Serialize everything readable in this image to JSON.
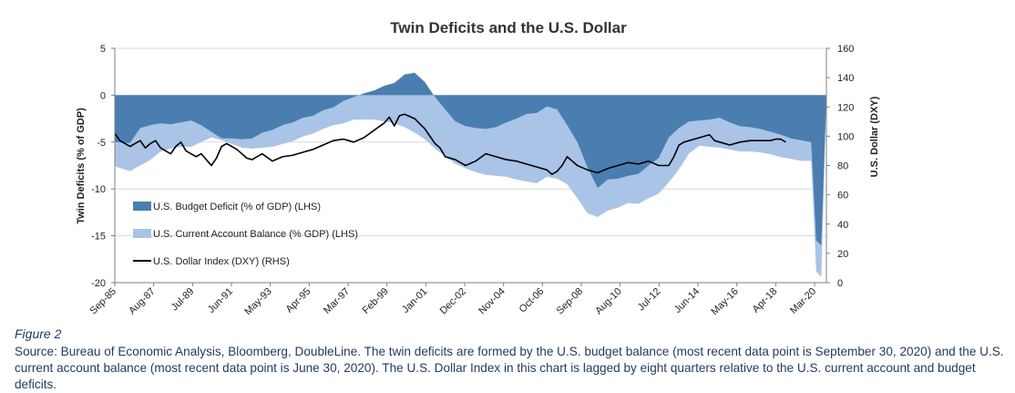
{
  "caption": {
    "figure_label": "Figure 2",
    "source": "Source: Bureau of Economic Analysis, Bloomberg, DoubleLine. The twin deficits are formed by the U.S. budget balance (most recent data point is September 30, 2020) and the U.S. current account balance (most recent data point is June 30, 2020). The U.S. Dollar Index in this chart is lagged by eight quarters relative to the U.S. current account and budget deficits."
  },
  "chart_data": {
    "type": "area",
    "title": "Twin Deficits and the U.S. Dollar",
    "ylabel_left": "Twin Deficits (% of GDP)",
    "ylabel_right": "U.S. Dollar (DXY)",
    "ylim_left": [
      -20,
      5
    ],
    "ylim_right": [
      0,
      160
    ],
    "yticks_left": [
      "5",
      "0",
      "-5",
      "-10",
      "-15",
      "-20"
    ],
    "yticks_right": [
      "160",
      "140",
      "120",
      "100",
      "80",
      "60",
      "40",
      "20",
      "0"
    ],
    "xticks": [
      "Sep-85",
      "Aug-87",
      "Jul-89",
      "Jun-91",
      "May-93",
      "Apr-95",
      "Mar-97",
      "Feb-99",
      "Jan-01",
      "Dec-02",
      "Nov-04",
      "Oct-06",
      "Sep-08",
      "Aug-10",
      "Jul-12",
      "Jun-14",
      "May-16",
      "Apr-18",
      "Mar-20"
    ],
    "x_range": [
      1985.75,
      2020.75
    ],
    "grid": true,
    "legend_position": "bottom-left",
    "series": [
      {
        "name": "U.S. Budget Deficit (% of GDP) (LHS)",
        "kind": "area",
        "axis": "left",
        "color": "#4a7eb0",
        "x": [
          1985.75,
          1986.5,
          1987.0,
          1987.5,
          1988.0,
          1988.5,
          1989.0,
          1989.5,
          1990.0,
          1990.5,
          1991.0,
          1991.5,
          1992.0,
          1992.5,
          1993.0,
          1993.5,
          1994.0,
          1994.5,
          1995.0,
          1995.5,
          1996.0,
          1996.5,
          1997.0,
          1997.5,
          1998.0,
          1998.5,
          1999.0,
          1999.5,
          2000.0,
          2000.5,
          2001.0,
          2001.5,
          2002.0,
          2002.5,
          2003.0,
          2003.5,
          2004.0,
          2004.5,
          2005.0,
          2005.5,
          2006.0,
          2006.5,
          2007.0,
          2007.5,
          2008.0,
          2008.5,
          2009.0,
          2009.5,
          2010.0,
          2010.5,
          2011.0,
          2011.5,
          2012.0,
          2012.5,
          2013.0,
          2013.5,
          2014.0,
          2014.5,
          2015.0,
          2015.5,
          2016.0,
          2016.5,
          2017.0,
          2017.5,
          2018.0,
          2018.5,
          2019.0,
          2019.5,
          2020.0,
          2020.25,
          2020.5,
          2020.75
        ],
        "values": [
          -5.0,
          -5.1,
          -3.5,
          -3.2,
          -3.0,
          -3.1,
          -2.9,
          -2.7,
          -3.2,
          -3.9,
          -4.6,
          -4.6,
          -4.7,
          -4.6,
          -4.0,
          -3.7,
          -3.2,
          -2.9,
          -2.4,
          -2.2,
          -1.6,
          -1.3,
          -0.6,
          -0.2,
          0.2,
          0.5,
          1.0,
          1.3,
          2.2,
          2.4,
          1.4,
          -0.2,
          -1.5,
          -2.8,
          -3.3,
          -3.5,
          -3.6,
          -3.4,
          -2.9,
          -2.5,
          -2.0,
          -1.9,
          -1.2,
          -1.5,
          -3.2,
          -5.0,
          -7.7,
          -9.9,
          -9.0,
          -8.9,
          -8.6,
          -8.4,
          -7.5,
          -6.7,
          -4.5,
          -3.5,
          -2.8,
          -2.7,
          -2.6,
          -2.4,
          -2.9,
          -3.3,
          -3.4,
          -3.6,
          -3.9,
          -4.2,
          -4.6,
          -4.8,
          -5.0,
          -15.5,
          -16.0,
          0
        ]
      },
      {
        "name": "U.S. Current Account Balance (% GDP) (LHS)",
        "kind": "area",
        "axis": "left",
        "color": "#a9c4e6",
        "x": [
          1985.75,
          1986.5,
          1987.0,
          1987.5,
          1988.0,
          1988.5,
          1989.0,
          1989.5,
          1990.0,
          1990.5,
          1991.0,
          1991.5,
          1992.0,
          1992.5,
          1993.0,
          1993.5,
          1994.0,
          1994.5,
          1995.0,
          1995.5,
          1996.0,
          1996.5,
          1997.0,
          1997.5,
          1998.0,
          1998.5,
          1999.0,
          1999.5,
          2000.0,
          2000.5,
          2001.0,
          2001.5,
          2002.0,
          2002.5,
          2003.0,
          2003.5,
          2004.0,
          2004.5,
          2005.0,
          2005.5,
          2006.0,
          2006.5,
          2007.0,
          2007.5,
          2008.0,
          2008.5,
          2009.0,
          2009.5,
          2010.0,
          2010.5,
          2011.0,
          2011.5,
          2012.0,
          2012.5,
          2013.0,
          2013.5,
          2014.0,
          2014.5,
          2015.0,
          2015.5,
          2016.0,
          2016.5,
          2017.0,
          2017.5,
          2018.0,
          2018.5,
          2019.0,
          2019.5,
          2020.0,
          2020.25,
          2020.5,
          2020.75
        ],
        "values": [
          -7.6,
          -8.1,
          -7.5,
          -6.9,
          -6.0,
          -5.7,
          -5.5,
          -5.5,
          -5.0,
          -4.5,
          -4.8,
          -5.2,
          -5.6,
          -5.7,
          -5.6,
          -5.5,
          -5.2,
          -4.9,
          -4.4,
          -4.1,
          -3.6,
          -3.2,
          -3.0,
          -2.6,
          -2.6,
          -2.6,
          -2.8,
          -3.0,
          -3.4,
          -4.0,
          -4.7,
          -5.7,
          -6.5,
          -7.3,
          -7.8,
          -8.2,
          -8.5,
          -8.6,
          -8.7,
          -9.0,
          -9.2,
          -9.4,
          -8.7,
          -8.9,
          -9.5,
          -11.0,
          -12.6,
          -13.0,
          -12.3,
          -12.0,
          -11.5,
          -11.6,
          -11.0,
          -10.5,
          -9.3,
          -7.9,
          -6.2,
          -5.4,
          -5.5,
          -5.6,
          -5.8,
          -6.0,
          -6.0,
          -6.1,
          -6.3,
          -6.6,
          -6.8,
          -7.0,
          -7.0,
          -18.8,
          -19.4,
          0
        ]
      },
      {
        "name": "U.S. Dollar Index (DXY) (RHS)",
        "kind": "line",
        "axis": "right",
        "color": "#000000",
        "x": [
          1985.75,
          1986.0,
          1986.5,
          1987.0,
          1987.25,
          1987.5,
          1987.75,
          1988.0,
          1988.25,
          1988.5,
          1988.75,
          1989.0,
          1989.25,
          1989.5,
          1989.75,
          1990.0,
          1990.25,
          1990.5,
          1990.75,
          1991.0,
          1991.25,
          1991.5,
          1991.75,
          1992.0,
          1992.25,
          1992.5,
          1992.75,
          1993.0,
          1993.5,
          1994.0,
          1994.5,
          1995.0,
          1995.5,
          1996.0,
          1996.5,
          1997.0,
          1997.5,
          1998.0,
          1998.5,
          1999.0,
          1999.25,
          1999.5,
          1999.75,
          2000.0,
          2000.5,
          2001.0,
          2001.25,
          2001.5,
          2001.75,
          2002.0,
          2002.5,
          2003.0,
          2003.5,
          2004.0,
          2004.5,
          2005.0,
          2005.5,
          2006.0,
          2006.5,
          2007.0,
          2007.25,
          2007.5,
          2007.75,
          2008.0,
          2008.5,
          2009.0,
          2009.5,
          2010.0,
          2010.5,
          2011.0,
          2011.5,
          2012.0,
          2012.5,
          2013.0,
          2013.25,
          2013.5,
          2013.75,
          2014.0,
          2014.5,
          2015.0,
          2015.25,
          2015.5,
          2016.0,
          2016.5,
          2017.0,
          2017.5,
          2018.0,
          2018.25,
          2018.5,
          2018.75
        ],
        "values": [
          102,
          97,
          93,
          97,
          92,
          95,
          97,
          92,
          90,
          88,
          93,
          96,
          90,
          88,
          86,
          88,
          84,
          80,
          85,
          93,
          95,
          93,
          91,
          88,
          85,
          84,
          86,
          88,
          83,
          86,
          87,
          89,
          91,
          94,
          97,
          98,
          96,
          99,
          104,
          109,
          113,
          107,
          114,
          115,
          112,
          105,
          100,
          95,
          92,
          86,
          84,
          80,
          83,
          88,
          86,
          84,
          83,
          81,
          79,
          77,
          74,
          76,
          80,
          86,
          80,
          77,
          75,
          78,
          80,
          82,
          81,
          83,
          80,
          80,
          86,
          94,
          96,
          97,
          99,
          101,
          97,
          96,
          94,
          96,
          97,
          97,
          97,
          98,
          98,
          96
        ]
      }
    ]
  }
}
